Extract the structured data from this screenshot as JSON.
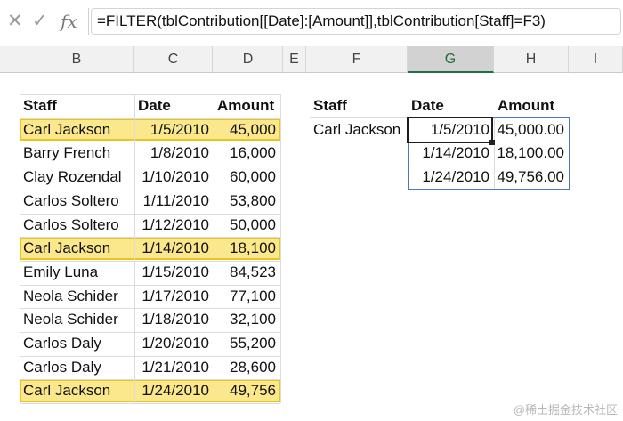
{
  "formula_bar": {
    "cancel_icon": "✕",
    "enter_icon": "✓",
    "fx_label": "fx",
    "formula": "=FILTER(tblContribution[[Date]:[Amount]],tblContribution[Staff]=F3)"
  },
  "columns": [
    "B",
    "C",
    "D",
    "E",
    "F",
    "G",
    "H",
    "I"
  ],
  "selected_column": "G",
  "table": {
    "headers": [
      "Staff",
      "Date",
      "Amount"
    ],
    "rows": [
      [
        "Carl Jackson",
        "1/5/2010",
        "45,000"
      ],
      [
        "Barry French",
        "1/8/2010",
        "16,000"
      ],
      [
        "Clay Rozendal",
        "1/10/2010",
        "60,000"
      ],
      [
        "Carlos Soltero",
        "1/11/2010",
        "53,800"
      ],
      [
        "Carlos Soltero",
        "1/12/2010",
        "50,000"
      ],
      [
        "Carl Jackson",
        "1/14/2010",
        "18,100"
      ],
      [
        "Emily Luna",
        "1/15/2010",
        "84,523"
      ],
      [
        "Neola Schider",
        "1/17/2010",
        "77,100"
      ],
      [
        "Neola Schider",
        "1/18/2010",
        "32,100"
      ],
      [
        "Carlos Daly",
        "1/20/2010",
        "55,200"
      ],
      [
        "Carlos Daly",
        "1/21/2010",
        "28,600"
      ],
      [
        "Carl Jackson",
        "1/24/2010",
        "49,756"
      ]
    ]
  },
  "filter_block": {
    "headers": [
      "Staff",
      "Date",
      "Amount"
    ],
    "criteria": "Carl Jackson",
    "results": [
      [
        "1/5/2010",
        "45,000.00"
      ],
      [
        "1/14/2010",
        "18,100.00"
      ],
      [
        "1/24/2010",
        "49,756.00"
      ]
    ]
  },
  "highlight_color": "#fbe88c",
  "highlight_border": "#e8c420",
  "watermark": "@稀土掘金技术社区"
}
